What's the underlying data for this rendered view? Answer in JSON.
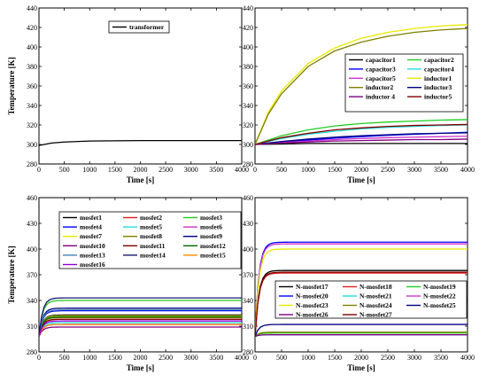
{
  "chart_data": [
    {
      "type": "line",
      "xlabel": "Time [s]",
      "ylabel": "Temperature [K]",
      "xlim": [
        0,
        4000
      ],
      "ylim": [
        280,
        440
      ],
      "xticks": [
        0,
        500,
        1000,
        1500,
        2000,
        2500,
        3000,
        3500,
        4000
      ],
      "yticks": [
        280,
        300,
        320,
        340,
        360,
        380,
        400,
        420,
        440
      ],
      "legend": "top-center",
      "legend_columns": 1,
      "series": [
        {
          "name": "transformer",
          "color": "#000000",
          "x": [
            0,
            250,
            500,
            1000,
            2000,
            3000,
            4000
          ],
          "values": [
            299,
            301.5,
            302.5,
            303.5,
            304,
            304,
            304
          ]
        }
      ]
    },
    {
      "type": "line",
      "xlabel": "Time [s]",
      "ylabel": "",
      "xlim": [
        0,
        4000
      ],
      "ylim": [
        280,
        440
      ],
      "xticks": [
        0,
        500,
        1000,
        1500,
        2000,
        2500,
        3000,
        3500,
        4000
      ],
      "yticks": [
        280,
        300,
        320,
        340,
        360,
        380,
        400,
        420,
        440
      ],
      "legend": "right",
      "legend_columns": 2,
      "series": [
        {
          "name": "capacitor1",
          "color": "#000000",
          "x": [
            0,
            500,
            1000,
            1500,
            2000,
            2500,
            3000,
            3500,
            4000
          ],
          "values": [
            300,
            300.5,
            301,
            301,
            301,
            301,
            301,
            301,
            301
          ]
        },
        {
          "name": "capacitor2",
          "color": "#22cc22",
          "x": [
            0,
            500,
            1000,
            1500,
            2000,
            2500,
            3000,
            3500,
            4000
          ],
          "values": [
            300,
            309,
            315,
            319,
            321.5,
            323,
            324,
            325,
            325.5
          ]
        },
        {
          "name": "capacitor3",
          "color": "#0000ff",
          "x": [
            0,
            500,
            1000,
            1500,
            2000,
            2500,
            3000,
            3500,
            4000
          ],
          "values": [
            300,
            302.5,
            304.5,
            306.5,
            308,
            309.5,
            310.5,
            311.5,
            312.5
          ]
        },
        {
          "name": "capacitor4",
          "color": "#22dddd",
          "x": [
            0,
            500,
            1000,
            1500,
            2000,
            2500,
            3000,
            3500,
            4000
          ],
          "values": [
            300,
            306,
            310.5,
            313.5,
            316,
            317.5,
            318.5,
            319.5,
            320
          ]
        },
        {
          "name": "capacitor5",
          "color": "#cc33cc",
          "x": [
            0,
            500,
            1000,
            1500,
            2000,
            2500,
            3000,
            3500,
            4000
          ],
          "values": [
            300,
            302,
            303.5,
            305,
            306,
            307,
            307.5,
            308,
            308.5
          ]
        },
        {
          "name": "inductor1",
          "color": "#e8e800",
          "x": [
            0,
            250,
            500,
            1000,
            1500,
            2000,
            2500,
            3000,
            3500,
            4000
          ],
          "values": [
            300,
            333,
            355,
            383,
            399,
            409,
            415,
            419,
            421.5,
            423
          ]
        },
        {
          "name": "inductor2",
          "color": "#808000",
          "x": [
            0,
            250,
            500,
            1000,
            1500,
            2000,
            2500,
            3000,
            3500,
            4000
          ],
          "values": [
            300,
            331,
            352,
            380,
            396,
            405,
            411,
            415,
            417.5,
            419
          ]
        },
        {
          "name": "inductor3",
          "color": "#000080",
          "x": [
            0,
            500,
            1000,
            1500,
            2000,
            2500,
            3000,
            3500,
            4000
          ],
          "values": [
            300,
            303,
            305.5,
            307.5,
            309,
            310,
            311,
            311.5,
            312
          ]
        },
        {
          "name": "inductor 4",
          "color": "#800080",
          "x": [
            0,
            500,
            1000,
            1500,
            2000,
            2500,
            3000,
            3500,
            4000
          ],
          "values": [
            300,
            301.5,
            302.5,
            303.5,
            304,
            304.5,
            305,
            305,
            305.5
          ]
        },
        {
          "name": "inductor5",
          "color": "#800000",
          "x": [
            0,
            500,
            1000,
            1500,
            2000,
            2500,
            3000,
            3500,
            4000
          ],
          "values": [
            300,
            307,
            311.5,
            315,
            317,
            318.5,
            319.5,
            320,
            320.5
          ]
        }
      ]
    },
    {
      "type": "line",
      "xlabel": "Time [s]",
      "ylabel": "Temperature [K]",
      "xlim": [
        0,
        4000
      ],
      "ylim": [
        280,
        460
      ],
      "xticks": [
        0,
        500,
        1000,
        1500,
        2000,
        2500,
        3000,
        3500,
        4000
      ],
      "yticks": [
        280,
        310,
        340,
        370,
        400,
        430,
        460
      ],
      "legend": "top-left",
      "legend_columns": 3,
      "series": [
        {
          "name": "mosfet1",
          "color": "#000000",
          "final": 323
        },
        {
          "name": "mosfet2",
          "color": "#e02020",
          "final": 318
        },
        {
          "name": "mosfet3",
          "color": "#22cc22",
          "final": 340
        },
        {
          "name": "mosfet4",
          "color": "#0000ff",
          "final": 328
        },
        {
          "name": "mosfet5",
          "color": "#22dddd",
          "final": 314
        },
        {
          "name": "mosfet6",
          "color": "#cc33cc",
          "final": 312
        },
        {
          "name": "mosfet7",
          "color": "#e8e800",
          "final": 322
        },
        {
          "name": "mosfet8",
          "color": "#808000",
          "final": 320
        },
        {
          "name": "mosfet9",
          "color": "#000080",
          "final": 331
        },
        {
          "name": "mosfet10",
          "color": "#800080",
          "final": 309
        },
        {
          "name": "mosfet11",
          "color": "#800000",
          "final": 318
        },
        {
          "name": "mosfet12",
          "color": "#006400",
          "final": 321
        },
        {
          "name": "mosfet13",
          "color": "#4682b4",
          "final": 329
        },
        {
          "name": "mosfet14",
          "color": "#191970",
          "final": 343
        },
        {
          "name": "mosfet15",
          "color": "#ff8c00",
          "final": 312
        },
        {
          "name": "mosfet16",
          "color": "#9400d3",
          "final": 316
        }
      ]
    },
    {
      "type": "line",
      "xlabel": "Time [s]",
      "ylabel": "",
      "xlim": [
        0,
        4000
      ],
      "ylim": [
        280,
        460
      ],
      "xticks": [
        0,
        500,
        1000,
        1500,
        2000,
        2500,
        3000,
        3500,
        4000
      ],
      "yticks": [
        280,
        310,
        340,
        370,
        400,
        430,
        460
      ],
      "legend": "center-right",
      "legend_columns": 3,
      "series": [
        {
          "name": "N-mosfet17",
          "color": "#000000",
          "final": 375
        },
        {
          "name": "N-mosfet18",
          "color": "#e02020",
          "final": 372
        },
        {
          "name": "N-mosfet19",
          "color": "#22cc22",
          "final": 302
        },
        {
          "name": "N-mosfet20",
          "color": "#0000ff",
          "final": 408
        },
        {
          "name": "N-mosfet21",
          "color": "#22dddd",
          "final": 300
        },
        {
          "name": "N-mosfet22",
          "color": "#cc33cc",
          "final": 406
        },
        {
          "name": "N-mosfet23",
          "color": "#e8e800",
          "final": 400
        },
        {
          "name": "N-mosfet24",
          "color": "#808000",
          "final": 303
        },
        {
          "name": "N-mosfet25",
          "color": "#000080",
          "final": 312
        },
        {
          "name": "N-mosfet26",
          "color": "#800080",
          "final": 300
        },
        {
          "name": "N-mosfet27",
          "color": "#800000",
          "final": 373
        }
      ]
    }
  ]
}
